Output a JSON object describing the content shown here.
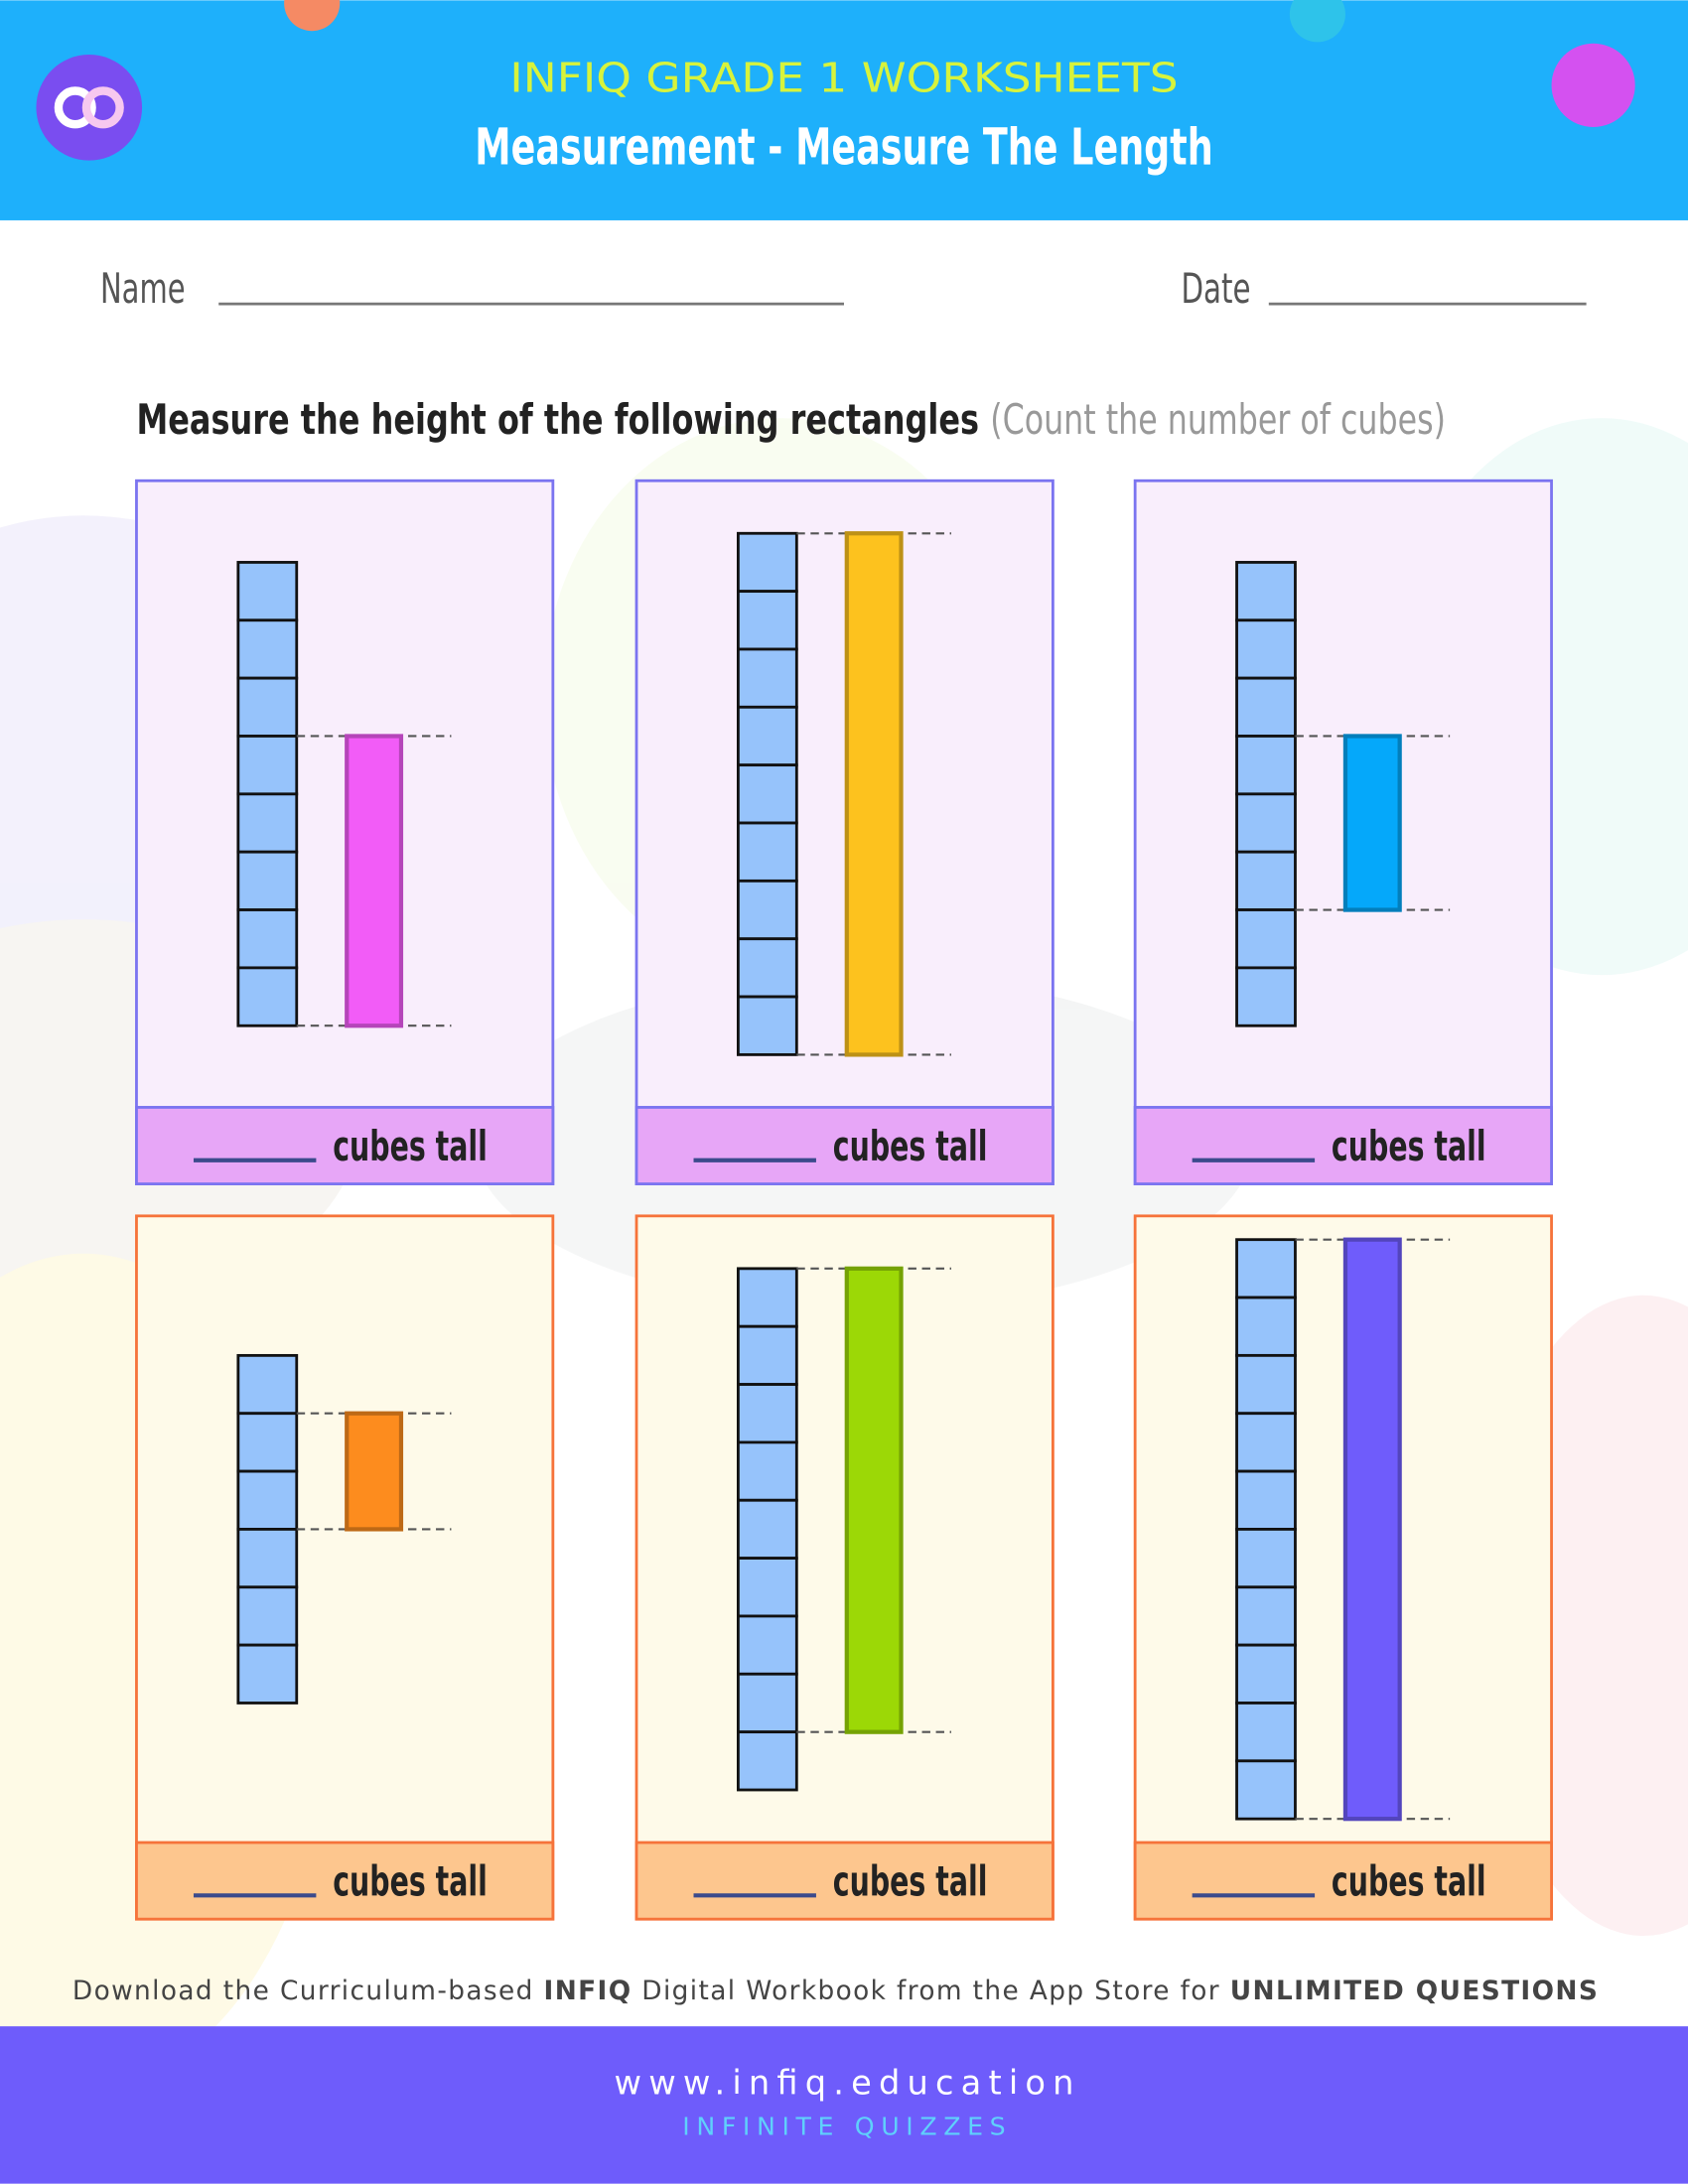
{
  "header": {
    "brand": "INFIQ GRADE 1 WORKSHEETS",
    "title": "Measurement - Measure The Length"
  },
  "fields": {
    "name": "Name",
    "date": "Date"
  },
  "instruction": {
    "text": "Measure the height of the following rectangles",
    "hint": "(Count the number of cubes)"
  },
  "panels": [
    {
      "cubes": 8,
      "bar": {
        "offset": 0,
        "height": 5,
        "color": "#f25cf7"
      },
      "label": "cubes tall"
    },
    {
      "cubes": 9,
      "bar": {
        "offset": 0,
        "height": 9,
        "color": "#fdc21e"
      },
      "label": "cubes tall"
    },
    {
      "cubes": 8,
      "bar": {
        "offset": 2,
        "height": 3,
        "color": "#05a8fa"
      },
      "label": "cubes tall"
    },
    {
      "cubes": 6,
      "bar": {
        "offset": 3,
        "height": 2,
        "color": "#fd8c1e"
      },
      "label": "cubes tall"
    },
    {
      "cubes": 9,
      "bar": {
        "offset": 1,
        "height": 8,
        "color": "#9cd806"
      },
      "label": "cubes tall"
    },
    {
      "cubes": 10,
      "bar": {
        "offset": 0,
        "height": 10,
        "color": "#6f5cfb"
      },
      "label": "cubes tall"
    }
  ],
  "footer": {
    "promo": [
      "Download the Curriculum-based ",
      "INFIQ",
      " Digital Workbook from the App Store for ",
      "UNLIMITED QUESTIONS"
    ],
    "url": "www.infiq.education",
    "tagline": "INFINITE QUIZZES"
  }
}
